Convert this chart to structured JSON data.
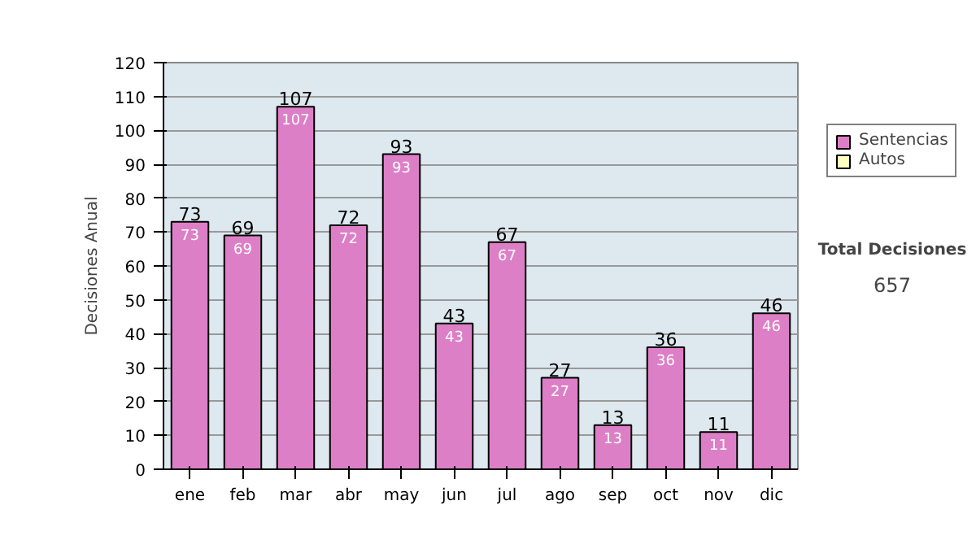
{
  "chart_data": {
    "type": "bar",
    "stacked": true,
    "ylabel": "Decisiones Anual",
    "categories": [
      "ene",
      "feb",
      "mar",
      "abr",
      "may",
      "jun",
      "jul",
      "ago",
      "sep",
      "oct",
      "nov",
      "dic"
    ],
    "series": [
      {
        "name": "Sentencias",
        "color": "#dd7fc6",
        "values": [
          73,
          69,
          107,
          72,
          93,
          43,
          67,
          27,
          13,
          36,
          11,
          46
        ]
      },
      {
        "name": "Autos",
        "color": "#ffffc0",
        "values": [
          null,
          null,
          null,
          null,
          null,
          null,
          null,
          null,
          null,
          null,
          null,
          null
        ]
      }
    ],
    "data_labels": true,
    "totals": [
      "73",
      "69",
      "107",
      "72",
      "93",
      "43",
      "67",
      "27",
      "13",
      "36",
      "11",
      "46"
    ],
    "ylim": [
      0,
      120
    ],
    "yticks": [
      0,
      10,
      20,
      30,
      40,
      50,
      60,
      70,
      80,
      90,
      100,
      110,
      120
    ],
    "grid": "y",
    "legend": "right",
    "annotations": [
      "Total Decisiones",
      "657"
    ]
  }
}
